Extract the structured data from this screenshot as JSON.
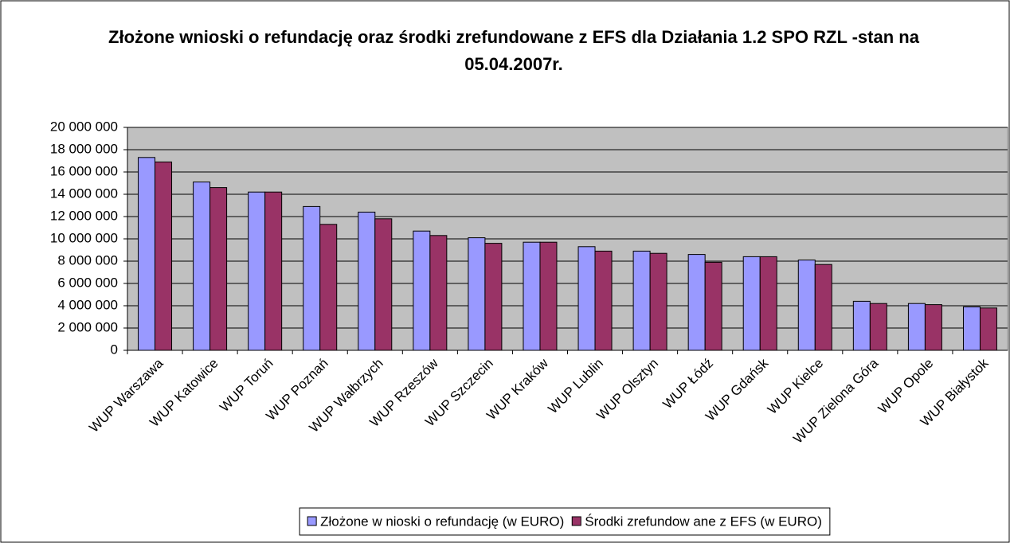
{
  "chart_data": {
    "type": "bar",
    "title": "Złożone wnioski o refundację oraz środki zrefundowane z EFS dla Działania 1.2 SPO RZL -stan na 05.04.2007r.",
    "categories": [
      "WUP Warszawa",
      "WUP Katowice",
      "WUP Toruń",
      "WUP Poznań",
      "WUP Wałbrzych",
      "WUP Rzeszów",
      "WUP Szczecin",
      "WUP Kraków",
      "WUP Lublin",
      "WUP Olsztyn",
      "WUP Łódź",
      "WUP Gdańsk",
      "WUP Kielce",
      "WUP Zielona Góra",
      "WUP Opole",
      "WUP Białystok"
    ],
    "series": [
      {
        "name": "Złożone w nioski o refundację (w  EURO)",
        "color": "#9999ff",
        "values": [
          17300000,
          15100000,
          14200000,
          12900000,
          12400000,
          10700000,
          10100000,
          9700000,
          9300000,
          8900000,
          8600000,
          8400000,
          8100000,
          4400000,
          4200000,
          3900000
        ]
      },
      {
        "name": "Środki zrefundow ane z EFS (w  EURO)",
        "color": "#993366",
        "values": [
          16900000,
          14600000,
          14200000,
          11300000,
          11800000,
          10300000,
          9600000,
          9700000,
          8900000,
          8700000,
          7900000,
          8400000,
          7700000,
          4200000,
          4100000,
          3800000
        ]
      }
    ],
    "ylim": [
      0,
      20000000
    ],
    "yticks": [
      {
        "value": 0,
        "label": "0"
      },
      {
        "value": 2000000,
        "label": "2 000 000"
      },
      {
        "value": 4000000,
        "label": "4 000 000"
      },
      {
        "value": 6000000,
        "label": "6 000 000"
      },
      {
        "value": 8000000,
        "label": "8 000 000"
      },
      {
        "value": 10000000,
        "label": "10 000 000"
      },
      {
        "value": 12000000,
        "label": "12 000 000"
      },
      {
        "value": 14000000,
        "label": "14 000 000"
      },
      {
        "value": 16000000,
        "label": "16 000 000"
      },
      {
        "value": 18000000,
        "label": "18 000 000"
      },
      {
        "value": 20000000,
        "label": "20 000 000"
      }
    ],
    "grid": true,
    "legend": "bottom"
  }
}
